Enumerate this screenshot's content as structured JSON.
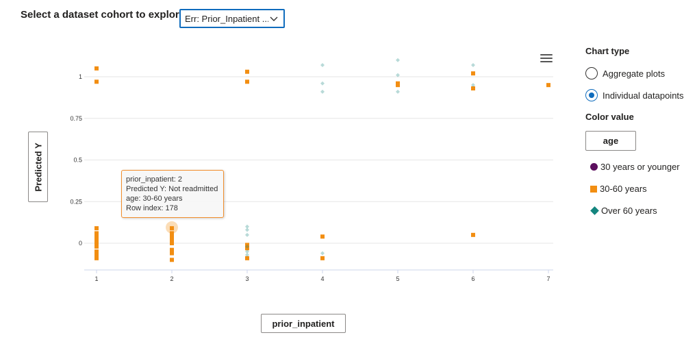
{
  "header": {
    "cohort_label": "Select a dataset cohort to explore",
    "cohort_value": "Err: Prior_Inpatient ..."
  },
  "axis_buttons": {
    "y_label": "Predicted Y",
    "x_label": "prior_inpatient"
  },
  "tooltip": {
    "line1": "prior_inpatient: 2",
    "line2": "Predicted Y: Not readmitted",
    "line3": "age: 30-60 years",
    "line4": "Row index: 178"
  },
  "side_panel": {
    "chart_type_title": "Chart type",
    "options": [
      "Aggregate plots",
      "Individual datapoints"
    ],
    "selected_option": "Individual datapoints",
    "color_value_title": "Color value",
    "color_value_button": "age",
    "legend": [
      {
        "label": "30 years or younger",
        "shape": "circle",
        "color": "#5c0f5e"
      },
      {
        "label": "30-60 years",
        "shape": "square",
        "color": "#f28e12"
      },
      {
        "label": "Over 60 years",
        "shape": "diamond",
        "color": "#13857e"
      }
    ]
  },
  "icons": {
    "menu": "hamburger-menu-icon",
    "dropdown": "chevron-down-icon"
  },
  "chart_data": {
    "type": "scatter",
    "xlim": [
      1,
      7
    ],
    "ylim": [
      -0.15,
      1.15
    ],
    "x_ticks": [
      1,
      2,
      3,
      4,
      5,
      6,
      7
    ],
    "y_ticks": [
      0,
      0.25,
      0.5,
      0.75,
      1
    ],
    "y_tick_labels": [
      "0",
      "0.25",
      "0.5",
      "0.75",
      "1"
    ],
    "grid": true,
    "series": [
      {
        "name": "30-60 years",
        "marker": "square",
        "color": "#f28e12",
        "points": [
          [
            1,
            1.05
          ],
          [
            1,
            0.97
          ],
          [
            1,
            0.09
          ],
          [
            1,
            0.06
          ],
          [
            1,
            0.04
          ],
          [
            1,
            0.02
          ],
          [
            1,
            0.0
          ],
          [
            1,
            -0.02
          ],
          [
            1,
            -0.05
          ],
          [
            1,
            -0.07
          ],
          [
            1,
            -0.09
          ],
          [
            2,
            0.09
          ],
          [
            2,
            0.06
          ],
          [
            2,
            0.04
          ],
          [
            2,
            0.02
          ],
          [
            2,
            0.0
          ],
          [
            2,
            -0.04
          ],
          [
            2,
            -0.06
          ],
          [
            2,
            -0.1
          ],
          [
            3,
            1.03
          ],
          [
            3,
            0.97
          ],
          [
            3,
            -0.01
          ],
          [
            3,
            -0.03
          ],
          [
            3,
            -0.09
          ],
          [
            4,
            0.04
          ],
          [
            4,
            -0.09
          ],
          [
            5,
            0.96
          ],
          [
            5,
            0.95
          ],
          [
            6,
            1.02
          ],
          [
            6,
            0.93
          ],
          [
            6,
            0.05
          ],
          [
            7,
            0.95
          ]
        ]
      },
      {
        "name": "Over 60 years",
        "marker": "diamond",
        "color": "#13857e",
        "opacity": 0.3,
        "points": [
          [
            3,
            0.1
          ],
          [
            3,
            0.08
          ],
          [
            3,
            0.05
          ],
          [
            3,
            -0.02
          ],
          [
            3,
            -0.05
          ],
          [
            3,
            -0.07
          ],
          [
            4,
            1.07
          ],
          [
            4,
            0.96
          ],
          [
            4,
            0.91
          ],
          [
            4,
            -0.06
          ],
          [
            5,
            1.1
          ],
          [
            5,
            1.01
          ],
          [
            5,
            0.91
          ],
          [
            6,
            1.07
          ],
          [
            6,
            0.95
          ]
        ]
      }
    ],
    "highlighted_point": [
      2,
      0.095
    ]
  }
}
